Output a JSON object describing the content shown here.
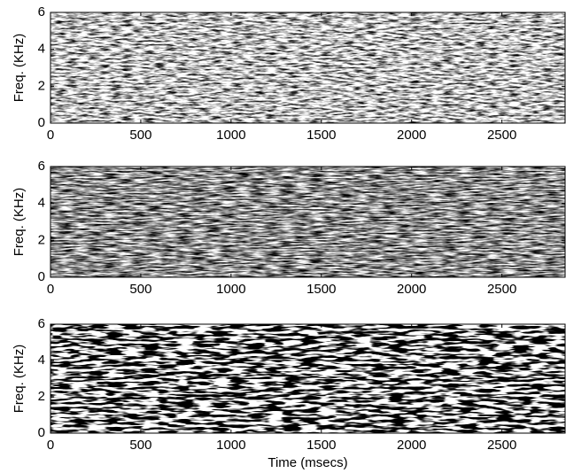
{
  "chart_data": [
    {
      "type": "spectrogram",
      "ylabel": "Freq. (KHz)",
      "xlim": [
        0,
        2850
      ],
      "ylim": [
        0,
        6
      ],
      "xticks": [
        0,
        500,
        1000,
        1500,
        2000,
        2500
      ],
      "yticks": [
        0,
        2,
        4,
        6
      ]
    },
    {
      "type": "spectrogram",
      "ylabel": "Freq. (KHz)",
      "xlim": [
        0,
        2850
      ],
      "ylim": [
        0,
        6
      ],
      "xticks": [
        0,
        500,
        1000,
        1500,
        2000,
        2500
      ],
      "yticks": [
        0,
        2,
        4,
        6
      ]
    },
    {
      "type": "spectrogram",
      "ylabel": "Freq. (KHz)",
      "xlabel": "Time (msecs)",
      "xlim": [
        0,
        2850
      ],
      "ylim": [
        0,
        6
      ],
      "xticks": [
        0,
        500,
        1000,
        1500,
        2000,
        2500
      ],
      "yticks": [
        0,
        2,
        4,
        6
      ]
    }
  ]
}
